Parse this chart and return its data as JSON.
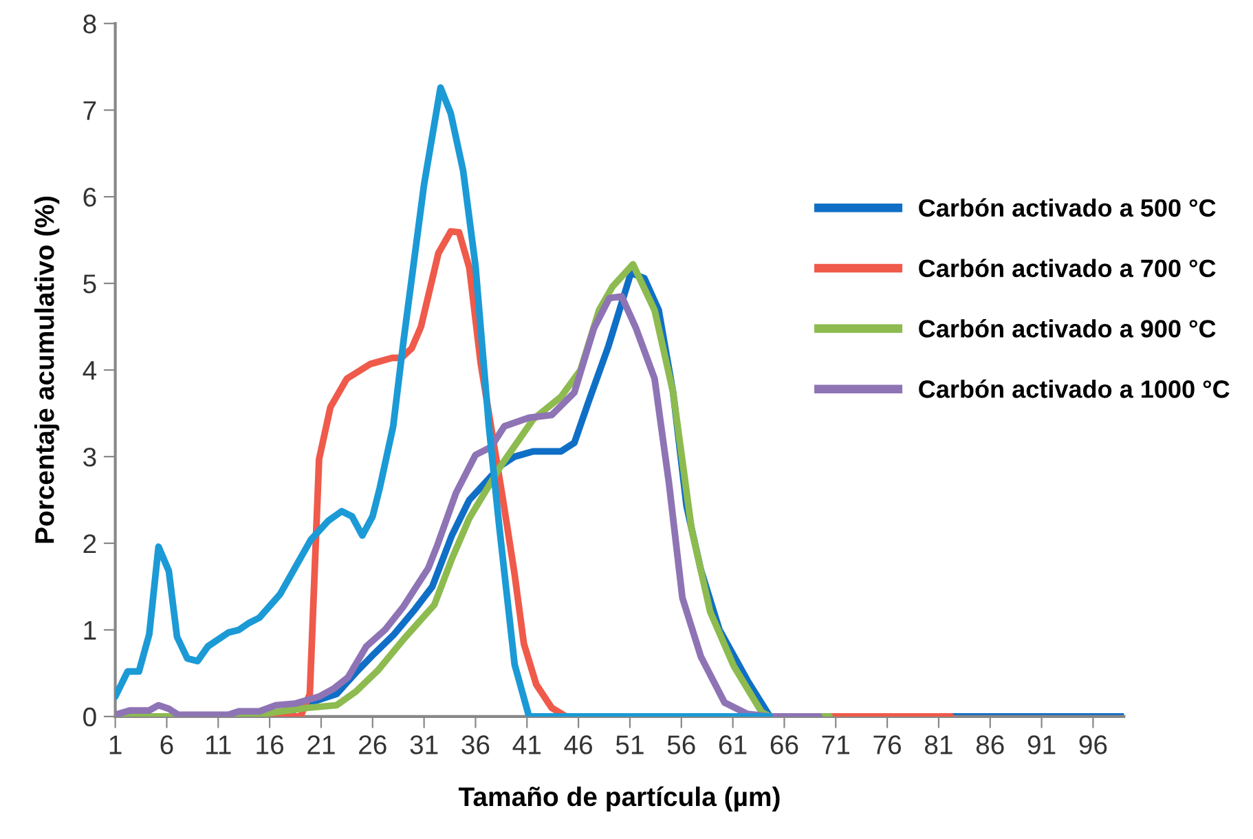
{
  "chart_data": {
    "type": "line",
    "xlabel": "Tamaño de partícula (µm)",
    "ylabel": "Porcentaje acumulativo (%)",
    "xlim": [
      1,
      99
    ],
    "xticks": [
      1,
      6,
      11,
      16,
      21,
      26,
      31,
      36,
      41,
      46,
      51,
      56,
      61,
      66,
      71,
      76,
      81,
      86,
      91,
      96
    ],
    "ylim": [
      0,
      8
    ],
    "yticks": [
      0,
      1,
      2,
      3,
      4,
      5,
      6,
      7,
      8
    ],
    "grid": false,
    "legend": "right",
    "marker": "none",
    "line_style": "solid",
    "series": [
      {
        "name": "Carbón activado a 500 °C",
        "color": "#0f6fc6",
        "x": [
          1,
          17,
          19.7,
          22.5,
          24.4,
          26.2,
          28.1,
          30,
          31.8,
          33.7,
          35.4,
          38.5,
          39.8,
          41.6,
          44.3,
          45.6,
          47,
          48.9,
          51.1,
          52.4,
          53.8,
          55.2,
          56.5,
          57.9,
          59.7,
          62.4,
          64.6,
          99
        ],
        "values": [
          0,
          0,
          0.15,
          0.26,
          0.51,
          0.73,
          0.95,
          1.22,
          1.5,
          2.09,
          2.5,
          2.9,
          3.0,
          3.06,
          3.06,
          3.16,
          3.64,
          4.27,
          5.12,
          5.06,
          4.69,
          3.74,
          2.43,
          1.69,
          1.0,
          0.42,
          0,
          0
        ]
      },
      {
        "name": "Carbón activado a 700 °C",
        "color": "#ef5a4a",
        "x": [
          1,
          19,
          19.9,
          20.8,
          21.9,
          23.5,
          25.8,
          27.9,
          28.8,
          29.8,
          30.7,
          32.4,
          33.6,
          34.4,
          35.4,
          36.5,
          38.7,
          39.8,
          40.7,
          41.9,
          43.4,
          44.8,
          82.2
        ],
        "values": [
          0,
          0,
          0.26,
          2.97,
          3.57,
          3.9,
          4.07,
          4.14,
          4.14,
          4.25,
          4.5,
          5.35,
          5.6,
          5.59,
          5.18,
          4.08,
          2.48,
          1.64,
          0.84,
          0.37,
          0.1,
          0,
          0
        ]
      },
      {
        "name": "Carbón activado a 900 °C",
        "color": "#8dbb4f",
        "x": [
          1,
          14,
          15.9,
          19.7,
          22.5,
          24.4,
          26.5,
          29,
          32,
          33.7,
          35.4,
          38.5,
          41.6,
          44.3,
          46.2,
          48,
          49.3,
          51.3,
          53.4,
          55.2,
          57,
          58.8,
          61.1,
          63.8,
          64.6,
          70.4
        ],
        "values": [
          0,
          0,
          0.04,
          0.1,
          0.13,
          0.29,
          0.53,
          0.89,
          1.29,
          1.82,
          2.29,
          2.9,
          3.43,
          3.69,
          4.0,
          4.69,
          4.96,
          5.22,
          4.69,
          3.74,
          2.16,
          1.21,
          0.58,
          0.05,
          0,
          0
        ]
      },
      {
        "name": "Carbón activado a 1000 °C",
        "color": "#8e74b5",
        "x": [
          1,
          2.4,
          4.3,
          5.2,
          6.2,
          7.1,
          12,
          13,
          15,
          16.6,
          18.5,
          20.8,
          22.2,
          23.6,
          25.4,
          27.2,
          29,
          31.4,
          32.3,
          34.1,
          36,
          37.5,
          38.8,
          41.2,
          43.4,
          45.6,
          47.5,
          49,
          50.2,
          51.6,
          53.4,
          54.8,
          56.1,
          57.9,
          60.2,
          62.4,
          64.6,
          69.4
        ],
        "values": [
          0.02,
          0.07,
          0.07,
          0.13,
          0.09,
          0.02,
          0.02,
          0.06,
          0.06,
          0.13,
          0.15,
          0.23,
          0.32,
          0.45,
          0.81,
          1.0,
          1.27,
          1.71,
          1.98,
          2.58,
          3.02,
          3.11,
          3.35,
          3.45,
          3.48,
          3.74,
          4.48,
          4.83,
          4.85,
          4.48,
          3.9,
          2.69,
          1.37,
          0.69,
          0.16,
          0.03,
          0,
          0
        ]
      },
      {
        "color": "#1b9ad6",
        "x": [
          1,
          2.2,
          3.3,
          4.3,
          5.2,
          6.2,
          7,
          8,
          9,
          10,
          12,
          13,
          14,
          15,
          17,
          20,
          21.7,
          23,
          24,
          25,
          26,
          26.7,
          28,
          29,
          31,
          32.6,
          33.6,
          34.8,
          36,
          37.3,
          38.3,
          39.8,
          41.2,
          64.6
        ],
        "values": [
          0.23,
          0.52,
          0.52,
          0.95,
          1.96,
          1.68,
          0.92,
          0.67,
          0.64,
          0.81,
          0.97,
          1.0,
          1.08,
          1.14,
          1.41,
          2.04,
          2.26,
          2.37,
          2.31,
          2.09,
          2.31,
          2.64,
          3.35,
          4.33,
          6.14,
          7.26,
          6.96,
          6.3,
          5.2,
          3.35,
          2.2,
          0.6,
          0,
          0
        ]
      }
    ]
  }
}
